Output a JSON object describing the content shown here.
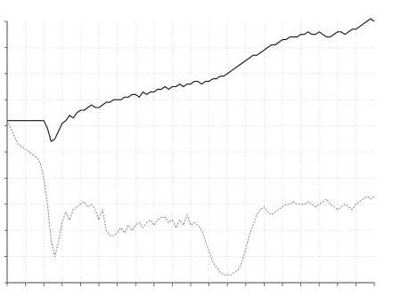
{
  "chart_data": {
    "type": "line",
    "title": "",
    "xlabel": "",
    "ylabel": "",
    "grid": true,
    "legend": "none",
    "x": [
      0,
      1,
      2,
      3,
      4,
      5,
      6,
      7,
      8,
      9,
      10,
      11,
      12,
      13,
      14,
      15,
      16,
      17,
      18,
      19,
      20,
      21,
      22,
      23,
      24,
      25,
      26,
      27,
      28,
      29,
      30,
      31,
      32,
      33,
      34,
      35,
      36,
      37,
      38,
      39,
      40,
      41,
      42,
      43,
      44,
      45,
      46,
      47,
      48,
      49,
      50,
      51,
      52,
      53,
      54,
      55,
      56,
      57,
      58,
      59,
      60,
      61,
      62,
      63,
      64,
      65,
      66,
      67,
      68,
      69,
      70,
      71,
      72,
      73,
      74,
      75,
      76,
      77,
      78,
      79,
      80,
      81,
      82,
      83,
      84,
      85,
      86,
      87,
      88,
      89,
      90,
      91,
      92,
      93,
      94,
      95,
      96,
      97,
      98,
      99,
      100
    ],
    "xlim": [
      0,
      100
    ],
    "ylim": [
      0,
      10
    ],
    "series": [
      {
        "color": "#111111",
        "style": "solid",
        "values": [
          6.2,
          6.2,
          6.2,
          6.2,
          6.2,
          6.2,
          6.2,
          6.2,
          6.2,
          6.2,
          6.2,
          5.9,
          5.4,
          5.5,
          5.8,
          6.1,
          6.2,
          6.4,
          6.3,
          6.5,
          6.6,
          6.6,
          6.7,
          6.8,
          6.7,
          6.7,
          6.8,
          6.9,
          6.9,
          7.0,
          7.0,
          7.0,
          7.1,
          7.1,
          7.2,
          7.2,
          7.1,
          7.3,
          7.2,
          7.3,
          7.3,
          7.4,
          7.4,
          7.5,
          7.4,
          7.5,
          7.5,
          7.6,
          7.5,
          7.6,
          7.6,
          7.7,
          7.7,
          7.6,
          7.7,
          7.7,
          7.8,
          7.8,
          7.9,
          7.9,
          8.0,
          8.1,
          8.2,
          8.3,
          8.4,
          8.5,
          8.6,
          8.7,
          8.7,
          8.8,
          8.9,
          9.0,
          9.1,
          9.1,
          9.2,
          9.3,
          9.3,
          9.4,
          9.4,
          9.4,
          9.5,
          9.5,
          9.6,
          9.5,
          9.5,
          9.6,
          9.5,
          9.4,
          9.4,
          9.5,
          9.6,
          9.6,
          9.5,
          9.6,
          9.7,
          9.7,
          9.8,
          9.9,
          10.0,
          10.1,
          10.0
        ]
      },
      {
        "color": "#777777",
        "style": "dotted",
        "values": [
          6.2,
          5.9,
          5.6,
          5.3,
          5.2,
          5.1,
          5.0,
          4.9,
          4.8,
          4.6,
          4.0,
          3.0,
          1.6,
          1.0,
          1.6,
          2.3,
          2.7,
          2.4,
          2.8,
          2.9,
          3.0,
          3.1,
          2.9,
          3.0,
          2.8,
          2.4,
          2.8,
          2.0,
          1.8,
          1.8,
          1.9,
          2.1,
          1.9,
          2.2,
          2.0,
          2.2,
          2.3,
          2.1,
          2.3,
          2.4,
          2.2,
          2.4,
          2.5,
          2.5,
          2.3,
          2.4,
          2.1,
          2.4,
          2.2,
          2.6,
          2.2,
          2.3,
          2.2,
          2.0,
          1.6,
          1.2,
          0.8,
          0.6,
          0.4,
          0.3,
          0.3,
          0.3,
          0.4,
          0.5,
          0.8,
          1.3,
          1.8,
          2.2,
          2.6,
          2.8,
          2.9,
          2.7,
          2.6,
          2.7,
          2.8,
          2.9,
          3.0,
          3.0,
          3.1,
          3.0,
          3.0,
          3.0,
          3.1,
          3.0,
          2.9,
          3.0,
          3.1,
          3.2,
          3.0,
          2.9,
          2.8,
          2.9,
          3.0,
          2.9,
          2.8,
          3.0,
          3.1,
          3.2,
          3.3,
          3.2,
          3.3
        ]
      }
    ]
  }
}
